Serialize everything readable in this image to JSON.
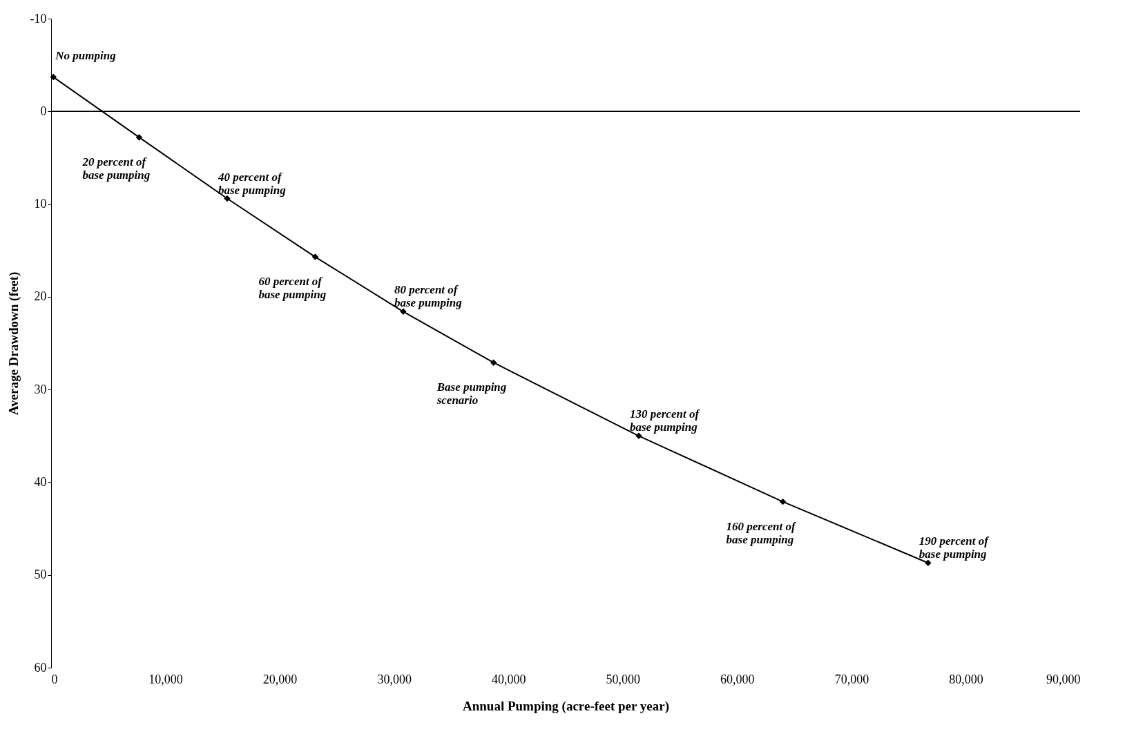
{
  "chart_data": {
    "type": "line",
    "xlabel": "Annual Pumping (acre-feet per year)",
    "ylabel": "Average Drawdown (feet)",
    "x": [
      200,
      7700,
      15400,
      23100,
      30800,
      38700,
      51400,
      64000,
      76700
    ],
    "series": [
      {
        "color": "#000000",
        "values": [
          -3.7,
          2.8,
          9.4,
          15.7,
          21.6,
          27.1,
          35.0,
          42.1,
          48.7
        ]
      }
    ],
    "xlim": [
      0,
      90000
    ],
    "xticks": [
      {
        "value": 0,
        "label": "0"
      },
      {
        "value": 10000,
        "label": "10,000"
      },
      {
        "value": 20000,
        "label": "20,000"
      },
      {
        "value": 30000,
        "label": "30,000"
      },
      {
        "value": 40000,
        "label": "40,000"
      },
      {
        "value": 50000,
        "label": "50,000"
      },
      {
        "value": 60000,
        "label": "60,000"
      },
      {
        "value": 70000,
        "label": "70,000"
      },
      {
        "value": 80000,
        "label": "80,000"
      },
      {
        "value": 90000,
        "label": "90,000"
      }
    ],
    "ylim": [
      60,
      -10
    ],
    "yticks": [
      -10,
      0,
      10,
      20,
      30,
      40,
      50,
      60
    ],
    "ref_lines": [
      {
        "axis": "y",
        "value": 0,
        "color": "#000000"
      }
    ],
    "marker": "diamond",
    "line_style": "solid",
    "grid": false,
    "annotations": [
      {
        "text": "No pumping",
        "x": 200,
        "y": -3.7
      },
      {
        "text": "20 percent of\nbase pumping",
        "x": 7700,
        "y": 2.8
      },
      {
        "text": "40 percent of\nbase pumping",
        "x": 15400,
        "y": 9.4
      },
      {
        "text": "60 percent of\nbase pumping",
        "x": 23100,
        "y": 15.7
      },
      {
        "text": "80 percent of\nbase pumping",
        "x": 30800,
        "y": 21.6
      },
      {
        "text": "Base pumping\nscenario",
        "x": 38700,
        "y": 27.1
      },
      {
        "text": "130 percent of\nbase pumping",
        "x": 51400,
        "y": 35.0
      },
      {
        "text": "160 percent of\nbase pumping",
        "x": 64000,
        "y": 42.1
      },
      {
        "text": "190 percent of\nbase pumping",
        "x": 76700,
        "y": 48.7
      }
    ]
  }
}
